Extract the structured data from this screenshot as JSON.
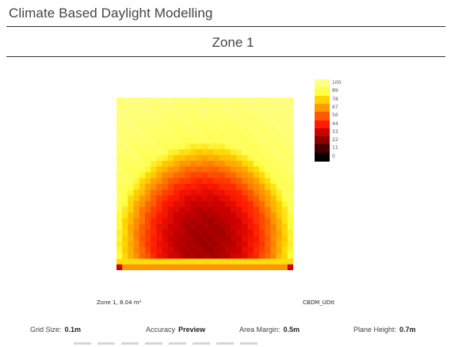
{
  "header": {
    "title": "Climate Based Daylight Modelling"
  },
  "zone": {
    "title": "Zone 1",
    "caption_area": "Zone 1, 8.04 m²",
    "caption_metric": "CBDM_UDIt"
  },
  "legend": {
    "items": [
      {
        "label": "100",
        "color": "#ffff88"
      },
      {
        "label": "89",
        "color": "#ffff44"
      },
      {
        "label": "78",
        "color": "#ffd400"
      },
      {
        "label": "67",
        "color": "#ff9a00"
      },
      {
        "label": "56",
        "color": "#ff5a00"
      },
      {
        "label": "44",
        "color": "#ff1a00"
      },
      {
        "label": "33",
        "color": "#cc0000"
      },
      {
        "label": "22",
        "color": "#8a0000"
      },
      {
        "label": "11",
        "color": "#440000"
      },
      {
        "label": "0",
        "color": "#000000"
      }
    ]
  },
  "params": {
    "grid_size_label": "Grid Size:",
    "grid_size_value": "0.1m",
    "accuracy_label": "Accuracy",
    "accuracy_value": "Preview",
    "area_margin_label": "Area Margin:",
    "area_margin_value": "0.5m",
    "plane_height_label": "Plane Height:",
    "plane_height_value": "0.7m"
  },
  "chart_data": {
    "type": "heatmap",
    "title": "Zone 1",
    "colorbar_ticks": [
      100,
      89,
      78,
      67,
      56,
      44,
      33,
      22,
      11,
      0
    ],
    "colormap": [
      "#000000",
      "#440000",
      "#8a0000",
      "#cc0000",
      "#ff1a00",
      "#ff5a00",
      "#ff9a00",
      "#ffd400",
      "#ffff44",
      "#ffff88"
    ]
  }
}
